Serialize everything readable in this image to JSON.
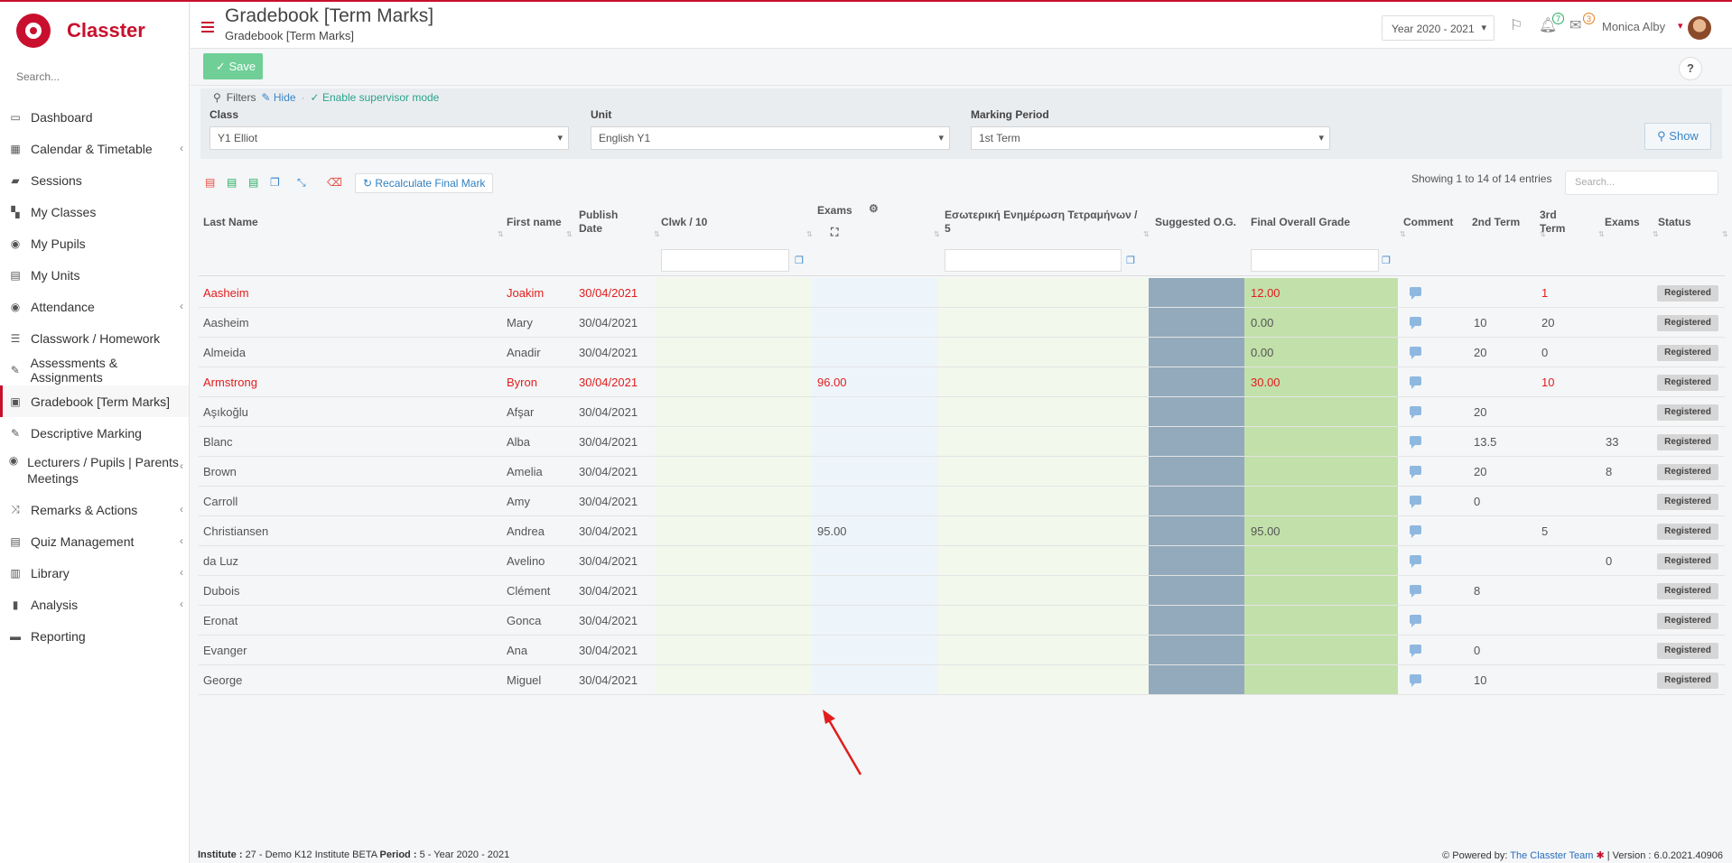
{
  "brand": {
    "name": "Classter"
  },
  "sidebar": {
    "search_placeholder": "Search...",
    "items": [
      {
        "label": "Dashboard",
        "icon": "laptop-icon",
        "has_sub": false
      },
      {
        "label": "Calendar & Timetable",
        "icon": "calendar-icon",
        "has_sub": true
      },
      {
        "label": "Sessions",
        "icon": "sessions-icon",
        "has_sub": false
      },
      {
        "label": "My Classes",
        "icon": "classes-icon",
        "has_sub": false
      },
      {
        "label": "My Pupils",
        "icon": "pupils-icon",
        "has_sub": false
      },
      {
        "label": "My Units",
        "icon": "book-icon",
        "has_sub": false
      },
      {
        "label": "Attendance",
        "icon": "attendance-icon",
        "has_sub": true
      },
      {
        "label": "Classwork / Homework",
        "icon": "list-icon",
        "has_sub": false
      },
      {
        "label": "Assessments & Assignments",
        "icon": "edit-icon",
        "has_sub": false
      },
      {
        "label": "Gradebook [Term Marks]",
        "icon": "gradebook-icon",
        "has_sub": false,
        "active": true
      },
      {
        "label": "Descriptive Marking",
        "icon": "marking-icon",
        "has_sub": false
      },
      {
        "label": "Lecturers / Pupils | Parents Meetings",
        "icon": "meetings-icon",
        "has_sub": true
      },
      {
        "label": "Remarks & Actions",
        "icon": "shuffle-icon",
        "has_sub": true
      },
      {
        "label": "Quiz Management",
        "icon": "quiz-icon",
        "has_sub": true
      },
      {
        "label": "Library",
        "icon": "library-icon",
        "has_sub": true
      },
      {
        "label": "Analysis",
        "icon": "chart-icon",
        "has_sub": true
      },
      {
        "label": "Reporting",
        "icon": "print-icon",
        "has_sub": false
      }
    ]
  },
  "header": {
    "title": "Gradebook [Term Marks]",
    "breadcrumb": "Gradebook [Term Marks]",
    "year": "Year 2020 - 2021",
    "notifications_count": "7",
    "messages_count": "3",
    "user": "Monica Alby"
  },
  "toolbar": {
    "save_label": "Save",
    "help_label": "?"
  },
  "filters": {
    "label": "Filters",
    "hide_label": "Hide",
    "supervisor_label": "Enable supervisor mode",
    "class_label": "Class",
    "class_value": "Y1 Elliot",
    "unit_label": "Unit",
    "unit_value": "English Y1",
    "period_label": "Marking Period",
    "period_value": "1st Term",
    "show_label": "Show"
  },
  "table_tools": {
    "recalc_label": "Recalculate Final Mark",
    "showing": "Showing 1 to 14 of 14 entries",
    "search_placeholder": "Search..."
  },
  "columns": {
    "last": "Last Name",
    "first": "First name",
    "publish": "Publish Date",
    "clwk": "Clwk / 10",
    "exams": "Exams",
    "internal": "Εσωτερική Ενημέρωση Τετραμήνων / 5",
    "suggested": "Suggested O.G.",
    "final": "Final Overall Grade",
    "comment": "Comment",
    "t2": "2nd Term",
    "t3": "3rd Term",
    "exams2": "Exams",
    "status": "Status"
  },
  "colors": {
    "accent": "#c8102e",
    "suggested_bg": "#93aabc",
    "final_bg": "#c2e0aa",
    "clwk_bg": "#f2f8ec",
    "exams_bg": "#edf5fb"
  },
  "rows": [
    {
      "last": "Aasheim",
      "first": "Joakim",
      "date": "30/04/2021",
      "exams": "",
      "final": "12.00",
      "t2": "",
      "t3": "1",
      "ex2": "",
      "status": "Registered",
      "red": true
    },
    {
      "last": "Aasheim",
      "first": "Mary",
      "date": "30/04/2021",
      "exams": "",
      "final": "0.00",
      "t2": "10",
      "t3": "20",
      "ex2": "",
      "status": "Registered",
      "red": false
    },
    {
      "last": "Almeida",
      "first": "Anadir",
      "date": "30/04/2021",
      "exams": "",
      "final": "0.00",
      "t2": "20",
      "t3": "0",
      "ex2": "",
      "status": "Registered",
      "red": false
    },
    {
      "last": "Armstrong",
      "first": "Byron",
      "date": "30/04/2021",
      "exams": "96.00",
      "final": "30.00",
      "t2": "",
      "t3": "10",
      "ex2": "",
      "status": "Registered",
      "red": true
    },
    {
      "last": "Aşıkoğlu",
      "first": "Afşar",
      "date": "30/04/2021",
      "exams": "",
      "final": "",
      "t2": "20",
      "t3": "",
      "ex2": "",
      "status": "Registered",
      "red": false
    },
    {
      "last": "Blanc",
      "first": "Alba",
      "date": "30/04/2021",
      "exams": "",
      "final": "",
      "t2": "13.5",
      "t3": "",
      "ex2": "33",
      "status": "Registered",
      "red": false
    },
    {
      "last": "Brown",
      "first": "Amelia",
      "date": "30/04/2021",
      "exams": "",
      "final": "",
      "t2": "20",
      "t3": "",
      "ex2": "8",
      "status": "Registered",
      "red": false
    },
    {
      "last": "Carroll",
      "first": "Amy",
      "date": "30/04/2021",
      "exams": "",
      "final": "",
      "t2": "0",
      "t3": "",
      "ex2": "",
      "status": "Registered",
      "red": false
    },
    {
      "last": "Christiansen",
      "first": "Andrea",
      "date": "30/04/2021",
      "exams": "95.00",
      "final": "95.00",
      "t2": "",
      "t3": "5",
      "ex2": "",
      "status": "Registered",
      "red": false
    },
    {
      "last": "da Luz",
      "first": "Avelino",
      "date": "30/04/2021",
      "exams": "",
      "final": "",
      "t2": "",
      "t3": "",
      "ex2": "0",
      "status": "Registered",
      "red": false
    },
    {
      "last": "Dubois",
      "first": "Clément",
      "date": "30/04/2021",
      "exams": "",
      "final": "",
      "t2": "8",
      "t3": "",
      "ex2": "",
      "status": "Registered",
      "red": false
    },
    {
      "last": "Eronat",
      "first": "Gonca",
      "date": "30/04/2021",
      "exams": "",
      "final": "",
      "t2": "",
      "t3": "",
      "ex2": "",
      "status": "Registered",
      "red": false
    },
    {
      "last": "Evanger",
      "first": "Ana",
      "date": "30/04/2021",
      "exams": "",
      "final": "",
      "t2": "0",
      "t3": "",
      "ex2": "",
      "status": "Registered",
      "red": false
    },
    {
      "last": "George",
      "first": "Miguel",
      "date": "30/04/2021",
      "exams": "",
      "final": "",
      "t2": "10",
      "t3": "",
      "ex2": "",
      "status": "Registered",
      "red": false
    }
  ],
  "footer": {
    "institute_label": "Institute :",
    "institute_value": "27 - Demo K12 Institute BETA",
    "period_label": "Period :",
    "period_value": "5 - Year 2020 - 2021",
    "powered_label": "Powered by:",
    "powered_link": "The Classter Team",
    "version": "| Version : 6.0.2021.40906"
  }
}
